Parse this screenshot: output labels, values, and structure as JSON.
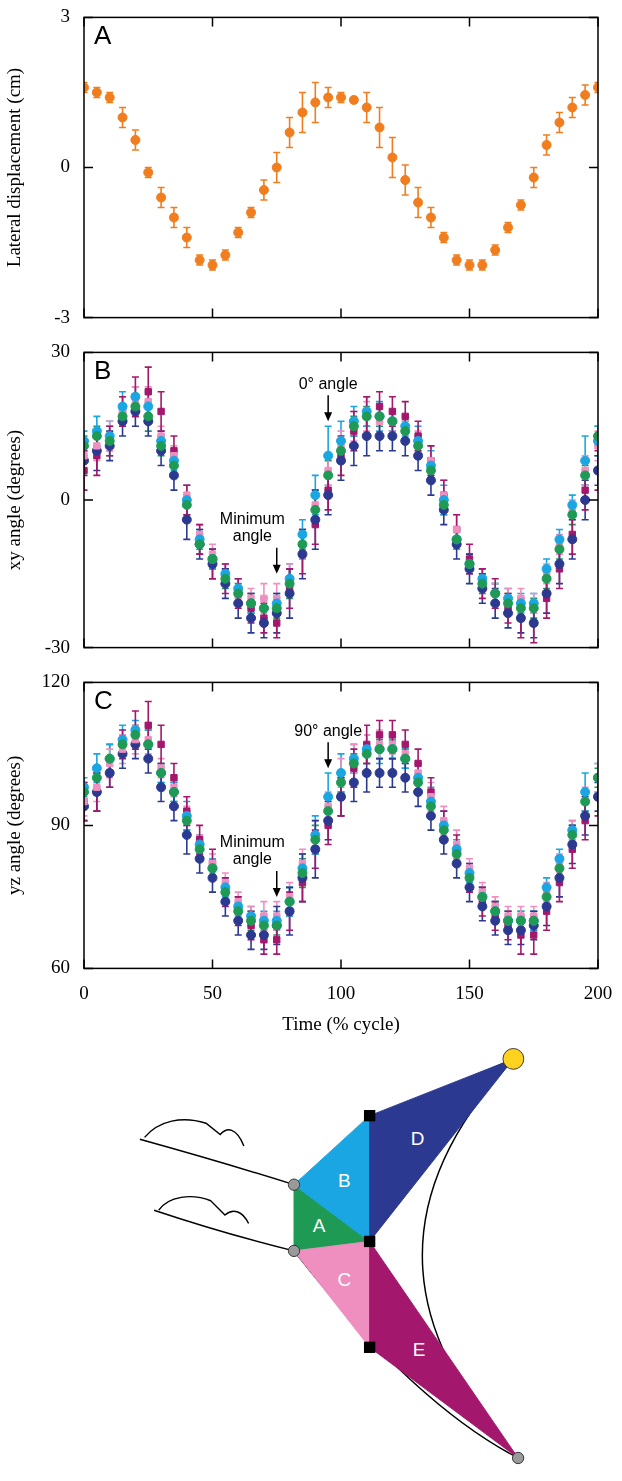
{
  "chart_data": [
    {
      "type": "scatter",
      "title": "A",
      "y_label": "Lateral displacement (cm)",
      "tick_labels": "y",
      "xlim": [
        0,
        200
      ],
      "xticks": [
        0,
        50,
        100,
        150,
        200
      ],
      "ylim": [
        -3,
        3
      ],
      "yticks": [
        -3,
        0,
        3
      ],
      "x": [
        0,
        5,
        10,
        15,
        20,
        25,
        30,
        35,
        40,
        45,
        50,
        55,
        60,
        65,
        70,
        75,
        80,
        85,
        90,
        95,
        100,
        105,
        110,
        115,
        120,
        125,
        130,
        135,
        140,
        145,
        150,
        155,
        160,
        165,
        170,
        175,
        180,
        185,
        190,
        195,
        200
      ],
      "series": [
        {
          "color": "#f07d1e",
          "marker": "circle",
          "values": [
            1.6,
            1.5,
            1.4,
            1.0,
            0.55,
            -0.1,
            -0.6,
            -1.0,
            -1.4,
            -1.85,
            -1.95,
            -1.75,
            -1.3,
            -0.9,
            -0.45,
            0,
            0.7,
            1.1,
            1.3,
            1.4,
            1.4,
            1.35,
            1.2,
            0.8,
            0.2,
            -0.25,
            -0.7,
            -1.0,
            -1.4,
            -1.85,
            -1.95,
            -1.95,
            -1.65,
            -1.2,
            -0.75,
            -0.2,
            0.45,
            0.9,
            1.2,
            1.45,
            1.6
          ],
          "errors": [
            0.1,
            0.1,
            0.1,
            0.2,
            0.2,
            0.1,
            0.2,
            0.2,
            0.2,
            0.1,
            0.1,
            0.1,
            0.1,
            0.1,
            0.2,
            0.3,
            0.3,
            0.4,
            0.4,
            0.2,
            0.1,
            0.05,
            0.3,
            0.4,
            0.4,
            0.3,
            0.3,
            0.2,
            0.1,
            0.1,
            0.1,
            0.1,
            0.1,
            0.1,
            0.1,
            0.2,
            0.2,
            0.2,
            0.2,
            0.2,
            0.1
          ]
        }
      ]
    },
    {
      "type": "scatter",
      "title": "B",
      "y_label": "xy angle (degrees)",
      "tick_labels": "y",
      "xlim": [
        0,
        200
      ],
      "xticks": [
        0,
        50,
        100,
        150,
        200
      ],
      "ylim": [
        -30,
        30
      ],
      "yticks": [
        -30,
        0,
        30
      ],
      "x": [
        0,
        5,
        10,
        15,
        20,
        25,
        30,
        35,
        40,
        45,
        50,
        55,
        60,
        65,
        70,
        75,
        80,
        85,
        90,
        95,
        100,
        105,
        110,
        115,
        120,
        125,
        130,
        135,
        140,
        145,
        150,
        155,
        160,
        165,
        170,
        175,
        180,
        185,
        190,
        195,
        200
      ],
      "annotations": [
        {
          "text": "0° angle",
          "x": 95,
          "y": 16
        },
        {
          "text": "Minimum angle",
          "x": 75,
          "y": -15
        }
      ],
      "series": [
        {
          "name": "A",
          "color": "#1f9a55",
          "marker": "circle",
          "values": [
            11,
            13,
            12,
            17,
            19,
            17,
            11,
            7,
            -1,
            -9,
            -12,
            -16,
            -19,
            -21,
            -22,
            -22,
            -17,
            -9,
            -2,
            5,
            10,
            15,
            17,
            17,
            16,
            14,
            11,
            6,
            -1,
            -8,
            -13,
            -17,
            -19,
            -21,
            -22,
            -22,
            -16,
            -10,
            -3,
            5,
            13
          ],
          "errors": [
            2,
            2,
            3,
            2,
            2,
            3,
            2,
            2,
            2,
            2,
            2,
            2,
            2,
            2,
            2,
            2,
            3,
            3,
            3,
            3,
            2,
            2,
            2,
            2,
            2,
            2,
            2,
            2,
            2,
            2,
            2,
            2,
            2,
            2,
            2,
            2,
            2,
            2,
            2,
            2,
            2
          ]
        },
        {
          "name": "B",
          "color": "#1aa6e2",
          "marker": "circle",
          "values": [
            12,
            14,
            13,
            19,
            21,
            19,
            12,
            8,
            0,
            -8,
            -12,
            -15,
            -18,
            -21,
            -22,
            -21,
            -16,
            -7,
            1,
            9,
            12,
            16,
            18,
            17,
            16,
            15,
            12,
            7,
            0,
            -8,
            -13,
            -16,
            -19,
            -20,
            -21,
            -21,
            -14,
            -8,
            -1,
            8,
            12
          ],
          "errors": [
            2,
            3,
            3,
            3,
            2,
            3,
            2,
            2,
            3,
            2,
            2,
            2,
            2,
            2,
            2,
            2,
            3,
            3,
            4,
            6,
            4,
            3,
            3,
            3,
            2,
            2,
            3,
            3,
            3,
            2,
            2,
            2,
            2,
            2,
            2,
            2,
            2,
            2,
            2,
            5,
            3
          ]
        },
        {
          "name": "C",
          "color": "#ef8fc0",
          "marker": "square",
          "values": [
            9,
            11,
            13,
            18,
            20,
            20,
            13,
            9,
            1,
            -7,
            -11,
            -15,
            -18,
            -20,
            -20,
            -20,
            -16,
            -9,
            -1,
            6,
            11,
            15,
            17,
            16,
            16,
            14,
            12,
            8,
            1,
            -6,
            -13,
            -16,
            -19,
            -20,
            -20,
            -21,
            -15,
            -9,
            -2,
            6,
            11
          ],
          "errors": [
            3,
            3,
            3,
            3,
            3,
            3,
            2,
            2,
            2,
            2,
            2,
            2,
            2,
            2,
            3,
            3,
            3,
            3,
            3,
            3,
            3,
            3,
            3,
            3,
            2,
            2,
            2,
            3,
            3,
            3,
            2,
            2,
            2,
            2,
            2,
            2,
            2,
            2,
            2,
            3,
            3
          ]
        },
        {
          "name": "D",
          "color": "#2b3990",
          "marker": "circle",
          "values": [
            8,
            10,
            11,
            16,
            18,
            16,
            10,
            5,
            -4,
            -9,
            -13,
            -17,
            -21,
            -24,
            -25,
            -23,
            -19,
            -11,
            -4,
            1,
            8,
            11,
            13,
            13,
            13,
            12,
            9,
            4,
            -2,
            -9,
            -14,
            -18,
            -21,
            -23,
            -24,
            -25,
            -19,
            -13,
            -8,
            0,
            6
          ],
          "errors": [
            3,
            4,
            3,
            3,
            3,
            3,
            3,
            3,
            4,
            3,
            3,
            3,
            3,
            3,
            3,
            4,
            5,
            5,
            6,
            4,
            4,
            4,
            4,
            3,
            3,
            3,
            3,
            3,
            3,
            3,
            3,
            3,
            3,
            3,
            3,
            3,
            4,
            4,
            4,
            4,
            3
          ]
        },
        {
          "name": "E",
          "color": "#a3176c",
          "marker": "square",
          "values": [
            6,
            9,
            12,
            18,
            21,
            22,
            18,
            10,
            0,
            -8,
            -13,
            -16,
            -19,
            -22,
            -24,
            -25,
            -18,
            -11,
            -5,
            2,
            9,
            14,
            17,
            19,
            18,
            17,
            13,
            8,
            1,
            -6,
            -12,
            -17,
            -19,
            -22,
            -24,
            -25,
            -20,
            -14,
            -7,
            2,
            6
          ],
          "errors": [
            4,
            4,
            3,
            3,
            4,
            5,
            4,
            3,
            3,
            3,
            3,
            3,
            3,
            3,
            3,
            3,
            4,
            4,
            4,
            4,
            4,
            4,
            4,
            3,
            3,
            3,
            3,
            3,
            3,
            3,
            3,
            3,
            3,
            3,
            4,
            4,
            4,
            4,
            4,
            4,
            4
          ]
        }
      ]
    },
    {
      "type": "scatter",
      "title": "C",
      "y_label": "yz angle (degrees)",
      "x_label": "Time (% cycle)",
      "xlim": [
        0,
        200
      ],
      "xticks": [
        0,
        50,
        100,
        150,
        200
      ],
      "ylim": [
        60,
        120
      ],
      "yticks": [
        60,
        90,
        120
      ],
      "x": [
        0,
        5,
        10,
        15,
        20,
        25,
        30,
        35,
        40,
        45,
        50,
        55,
        60,
        65,
        70,
        75,
        80,
        85,
        90,
        95,
        100,
        105,
        110,
        115,
        120,
        125,
        130,
        135,
        140,
        145,
        150,
        155,
        160,
        165,
        170,
        175,
        180,
        185,
        190,
        195,
        200
      ],
      "annotations": [
        {
          "text": "90° angle",
          "x": 95,
          "y": 102
        },
        {
          "text": "Minimum angle",
          "x": 75,
          "y": 75
        }
      ],
      "series": [
        {
          "name": "A",
          "color": "#1f9a55",
          "marker": "circle",
          "values": [
            97,
            100,
            104,
            107,
            109,
            107,
            101,
            97,
            91,
            85,
            81,
            76,
            72,
            70,
            69,
            69,
            74,
            80,
            87,
            93,
            99,
            103,
            105,
            106,
            106,
            104,
            99,
            94,
            89,
            84,
            79,
            75,
            72,
            70,
            70,
            70,
            75,
            81,
            88,
            95,
            100
          ],
          "errors": [
            2,
            2,
            3,
            2,
            2,
            3,
            2,
            2,
            2,
            2,
            2,
            2,
            2,
            2,
            2,
            2,
            3,
            3,
            3,
            3,
            2,
            2,
            2,
            2,
            2,
            2,
            2,
            2,
            2,
            2,
            2,
            2,
            2,
            2,
            2,
            2,
            2,
            2,
            2,
            2,
            2
          ]
        },
        {
          "name": "B",
          "color": "#1aa6e2",
          "marker": "circle",
          "values": [
            98,
            102,
            104,
            108,
            110,
            107,
            101,
            97,
            92,
            86,
            81,
            77,
            73,
            71,
            70,
            70,
            74,
            81,
            88,
            96,
            101,
            104,
            106,
            106,
            106,
            104,
            100,
            95,
            90,
            85,
            80,
            75,
            72,
            70,
            70,
            70,
            77,
            83,
            89,
            97,
            100
          ],
          "errors": [
            2,
            3,
            3,
            3,
            2,
            3,
            2,
            2,
            3,
            2,
            2,
            2,
            2,
            2,
            2,
            2,
            3,
            3,
            4,
            5,
            4,
            3,
            3,
            3,
            2,
            2,
            3,
            3,
            3,
            2,
            2,
            2,
            2,
            2,
            2,
            2,
            2,
            2,
            2,
            4,
            3
          ]
        },
        {
          "name": "C",
          "color": "#ef8fc0",
          "marker": "square",
          "values": [
            95,
            98,
            103,
            106,
            108,
            108,
            102,
            98,
            92,
            86,
            82,
            78,
            74,
            71,
            71,
            71,
            75,
            82,
            88,
            94,
            101,
            104,
            106,
            107,
            107,
            105,
            101,
            96,
            91,
            86,
            81,
            76,
            73,
            71,
            71,
            71,
            76,
            82,
            89,
            95,
            100
          ],
          "errors": [
            3,
            3,
            3,
            3,
            3,
            3,
            2,
            2,
            2,
            2,
            2,
            2,
            2,
            2,
            3,
            3,
            3,
            3,
            3,
            3,
            3,
            3,
            3,
            3,
            2,
            2,
            2,
            3,
            3,
            3,
            2,
            2,
            2,
            2,
            2,
            2,
            2,
            2,
            2,
            3,
            3
          ]
        },
        {
          "name": "D",
          "color": "#2b3990",
          "marker": "circle",
          "values": [
            94,
            97,
            101,
            105,
            107,
            104,
            98,
            94,
            88,
            83,
            79,
            74,
            70,
            67,
            67,
            69,
            72,
            79,
            85,
            91,
            96,
            99,
            101,
            101,
            101,
            100,
            97,
            92,
            87,
            82,
            77,
            73,
            70,
            68,
            68,
            69,
            73,
            79,
            86,
            92,
            96
          ],
          "errors": [
            3,
            4,
            3,
            3,
            3,
            3,
            3,
            3,
            4,
            3,
            3,
            3,
            3,
            3,
            3,
            4,
            5,
            5,
            6,
            4,
            4,
            4,
            4,
            3,
            3,
            3,
            3,
            3,
            3,
            3,
            3,
            3,
            3,
            3,
            3,
            3,
            4,
            4,
            4,
            4,
            3
          ]
        },
        {
          "name": "E",
          "color": "#a3176c",
          "marker": "square",
          "values": [
            95,
            97,
            101,
            107,
            110,
            111,
            107,
            100,
            93,
            87,
            82,
            76,
            72,
            69,
            66,
            66,
            72,
            78,
            85,
            90,
            96,
            102,
            107,
            109,
            109,
            107,
            103,
            97,
            90,
            85,
            79,
            74,
            71,
            69,
            67,
            67,
            72,
            78,
            85,
            91,
            96
          ],
          "errors": [
            4,
            4,
            3,
            3,
            4,
            5,
            4,
            3,
            3,
            3,
            3,
            3,
            3,
            3,
            3,
            3,
            4,
            4,
            4,
            4,
            4,
            4,
            4,
            3,
            3,
            3,
            3,
            3,
            3,
            3,
            3,
            3,
            3,
            3,
            4,
            4,
            4,
            4,
            4,
            4,
            4
          ]
        }
      ]
    }
  ]
}
